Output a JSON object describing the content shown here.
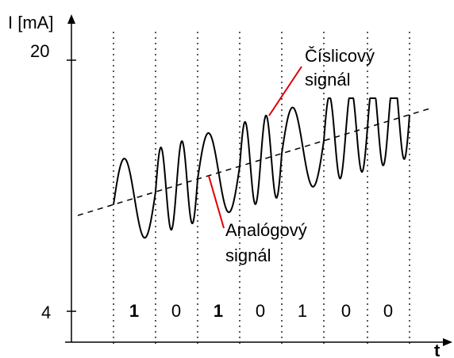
{
  "figure": {
    "y_axis_label": "I [mA]",
    "x_axis_label": "t",
    "y_ticks": [
      "20",
      "4"
    ],
    "bits": [
      "1",
      "0",
      "1",
      "0",
      "1",
      "0",
      "0"
    ],
    "digital_label": [
      "Číslicový",
      "signál"
    ],
    "analog_label": [
      "Analógový",
      "signál"
    ],
    "colors": {
      "ink": "#000000",
      "callout_line": "#e00000",
      "grid": "#000000"
    }
  }
}
